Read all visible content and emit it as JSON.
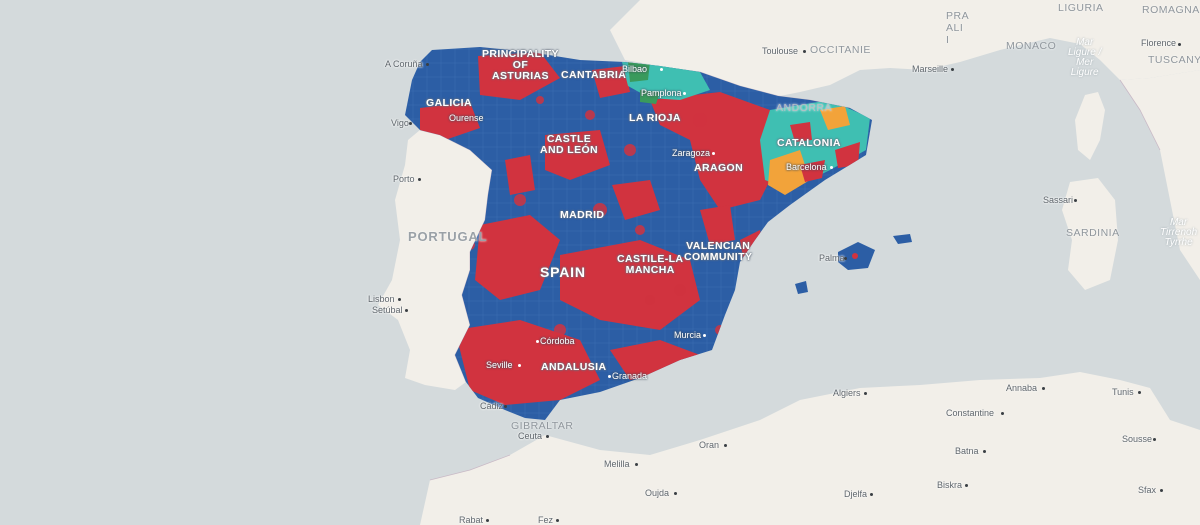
{
  "colors": {
    "sea": "#d4dadc",
    "land": "#f2efe9",
    "border": "#c9b9c6",
    "party_blue": "#2c5ea5",
    "party_red": "#d1333f",
    "party_teal": "#3fbfb2",
    "party_green": "#3a9a5c",
    "party_orange": "#f2a33a"
  },
  "regions": [
    {
      "name": "PRINCIPALITY\nOF\nASTURIAS"
    },
    {
      "name": "CANTABRIA"
    },
    {
      "name": "GALICIA"
    },
    {
      "name": "LA RIOJA"
    },
    {
      "name": "CASTLE\nAND LEÓN"
    },
    {
      "name": "ARAGON"
    },
    {
      "name": "CATALONIA"
    },
    {
      "name": "ANDORRA"
    },
    {
      "name": "MADRID"
    },
    {
      "name": "VALENCIAN\nCOMMUNITY"
    },
    {
      "name": "CASTILE-LA\nMANCHA"
    },
    {
      "name": "ANDALUSIA"
    }
  ],
  "country_labels": {
    "spain": "SPAIN",
    "portugal": "PORTUGAL",
    "gibraltar": "GIBRALTAR",
    "monaco": "MONACO",
    "occitanie": "OCCITANIE",
    "liguria": "LIGURIA",
    "romagna": "ROMAGNA",
    "tuscany": "TUSCANY",
    "sardinia": "SARDINIA",
    "prali": "PRA\nALI\nI"
  },
  "sea_labels": {
    "ligurian": "Mar\nLigure /\nMer\nLigure",
    "tyrrhenian": "Mar\nTirrenoh\nTyrrhe"
  },
  "cities": {
    "a_coruna": "A Coruña",
    "vigo": "Vigo",
    "ourense": "Ourense",
    "bilbao": "Bilbao",
    "pamplona": "Pamplona",
    "zaragoza": "Zaragoza",
    "barcelona": "Barcelona",
    "porto": "Porto",
    "lisbon": "Lisbon",
    "setubal": "Setúbal",
    "palma": "Palma",
    "cordoba": "Córdoba",
    "sevilla": "Seville",
    "granada": "Granada",
    "murcia": "Murcia",
    "cadiz": "Cádiz",
    "ceuta": "Ceuta",
    "toulouse": "Toulouse",
    "marseille": "Marseille",
    "florence": "Florence",
    "sassari": "Sassari",
    "algiers": "Algiers",
    "oran": "Oran",
    "melilla": "Melilla",
    "oujda": "Oujda",
    "annaba": "Annaba",
    "tunis": "Tunis",
    "constantine": "Constantine",
    "sousse": "Sousse",
    "batna": "Batna",
    "djelfa": "Djelfa",
    "biskra": "Biskra",
    "sfax": "Sfax",
    "rabat": "Rabat",
    "fez": "Fez"
  }
}
